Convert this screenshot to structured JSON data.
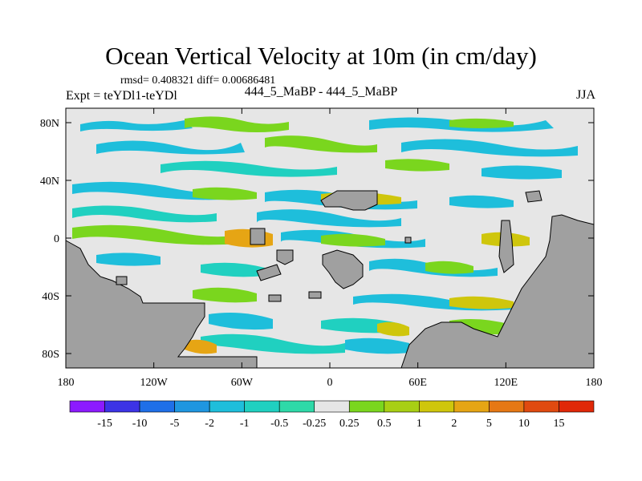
{
  "chart_data": {
    "type": "heatmap",
    "title": "Ocean Vertical Velocity at 10m (in cm/day)",
    "stats": "rmsd= 0.408321 diff= 0.00686481",
    "left_label": "Expt = teYDl1-teYDl",
    "center_label": "444_5_MaBP - 444_5_MaBP",
    "right_label": "JJA",
    "x_ticks": [
      "180",
      "120W",
      "60W",
      "0",
      "60E",
      "120E",
      "180"
    ],
    "y_ticks": [
      "80N",
      "40N",
      "0",
      "40S",
      "80S"
    ],
    "xlim": [
      -180,
      180
    ],
    "ylim": [
      -90,
      90
    ],
    "colorbar": {
      "labels": [
        "-15",
        "-10",
        "-5",
        "-2",
        "-1",
        "-0.5",
        "-0.25",
        "0.25",
        "0.5",
        "1",
        "2",
        "5",
        "10",
        "15"
      ],
      "colors": [
        "#8c1aff",
        "#3c33e6",
        "#1f6fe8",
        "#1f96e0",
        "#1ebedb",
        "#20d0c0",
        "#2ed9a8",
        "#e6e6e6",
        "#7ad61e",
        "#a8cf14",
        "#cfc60c",
        "#e6a514",
        "#e67814",
        "#e04a10",
        "#e02808"
      ]
    },
    "land_color": "#a0a0a0",
    "field_color": "#e6e6e6"
  }
}
